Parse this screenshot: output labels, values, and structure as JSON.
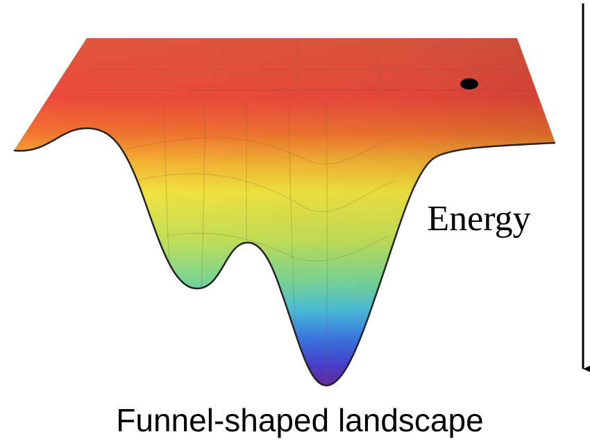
{
  "axis_label": "Energy",
  "caption": "Funnel-shaped landscape"
}
